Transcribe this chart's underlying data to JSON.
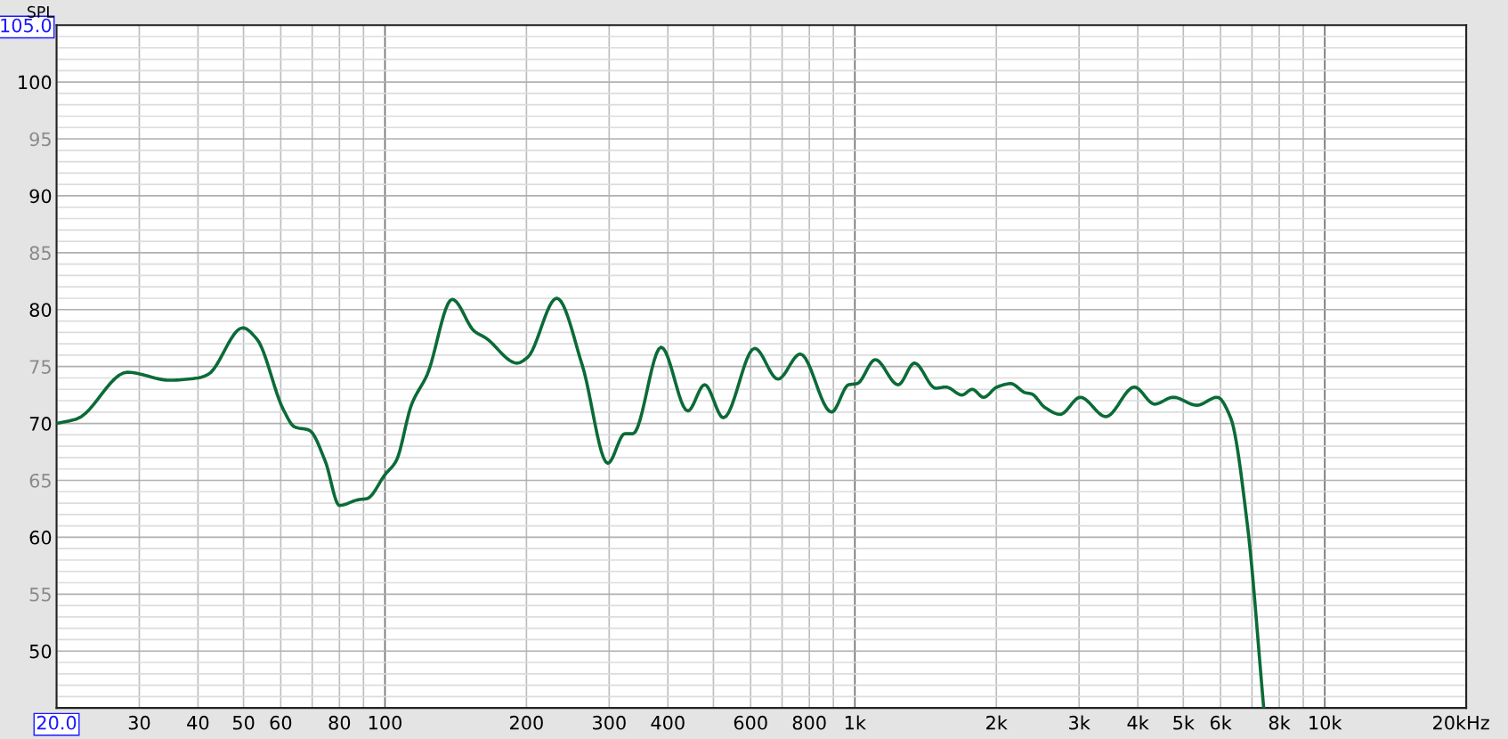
{
  "chart_data": {
    "type": "line",
    "ylabel": "SPL",
    "log": "x",
    "grid": true,
    "marker": "none",
    "line_style": "solid",
    "xlim": [
      20,
      20000
    ],
    "ylim": [
      45,
      105
    ],
    "xticks": [
      {
        "value": 20,
        "label": "20.0"
      },
      30,
      40,
      50,
      60,
      {
        "value": 70,
        "label": null
      },
      80,
      {
        "value": 90,
        "label": null
      },
      100,
      200,
      300,
      400,
      {
        "value": 500,
        "label": null
      },
      600,
      {
        "value": 700,
        "label": null
      },
      800,
      {
        "value": 900,
        "label": null
      },
      {
        "value": 1000,
        "label": "1k"
      },
      {
        "value": 2000,
        "label": "2k"
      },
      {
        "value": 3000,
        "label": "3k"
      },
      {
        "value": 4000,
        "label": "4k"
      },
      {
        "value": 5000,
        "label": "5k"
      },
      {
        "value": 6000,
        "label": "6k"
      },
      {
        "value": 7000,
        "label": null
      },
      {
        "value": 8000,
        "label": "8k"
      },
      {
        "value": 9000,
        "label": null
      },
      {
        "value": 10000,
        "label": "10k"
      },
      {
        "value": 20000,
        "label": "20k"
      }
    ],
    "xlabel": "Hz",
    "yticks": [
      {
        "value": 45,
        "label": null
      },
      {
        "value": 46,
        "label": null
      },
      {
        "value": 47,
        "label": null
      },
      {
        "value": 48,
        "label": null
      },
      {
        "value": 49,
        "label": null
      },
      50,
      {
        "value": 51,
        "label": null
      },
      {
        "value": 52,
        "label": null
      },
      {
        "value": 53,
        "label": null
      },
      {
        "value": 54,
        "label": null
      },
      55,
      {
        "value": 56,
        "label": null
      },
      {
        "value": 57,
        "label": null
      },
      {
        "value": 58,
        "label": null
      },
      {
        "value": 59,
        "label": null
      },
      60,
      {
        "value": 61,
        "label": null
      },
      {
        "value": 62,
        "label": null
      },
      {
        "value": 63,
        "label": null
      },
      {
        "value": 64,
        "label": null
      },
      65,
      {
        "value": 66,
        "label": null
      },
      {
        "value": 67,
        "label": null
      },
      {
        "value": 68,
        "label": null
      },
      {
        "value": 69,
        "label": null
      },
      70,
      {
        "value": 71,
        "label": null
      },
      {
        "value": 72,
        "label": null
      },
      {
        "value": 73,
        "label": null
      },
      {
        "value": 74,
        "label": null
      },
      75,
      {
        "value": 76,
        "label": null
      },
      {
        "value": 77,
        "label": null
      },
      {
        "value": 78,
        "label": null
      },
      {
        "value": 79,
        "label": null
      },
      80,
      {
        "value": 81,
        "label": null
      },
      {
        "value": 82,
        "label": null
      },
      {
        "value": 83,
        "label": null
      },
      {
        "value": 84,
        "label": null
      },
      85,
      {
        "value": 86,
        "label": null
      },
      {
        "value": 87,
        "label": null
      },
      {
        "value": 88,
        "label": null
      },
      {
        "value": 89,
        "label": null
      },
      90,
      {
        "value": 91,
        "label": null
      },
      {
        "value": 92,
        "label": null
      },
      {
        "value": 93,
        "label": null
      },
      {
        "value": 94,
        "label": null
      },
      95,
      {
        "value": 96,
        "label": null
      },
      {
        "value": 97,
        "label": null
      },
      {
        "value": 98,
        "label": null
      },
      {
        "value": 99,
        "label": null
      },
      100,
      {
        "value": 101,
        "label": null
      },
      {
        "value": 102,
        "label": null
      },
      {
        "value": 103,
        "label": null
      },
      {
        "value": 104,
        "label": null
      },
      {
        "value": 105,
        "label": "105.0"
      }
    ],
    "series": [
      {
        "color": "#0b6b37",
        "x": [
          20,
          22.1,
          28.3,
          34.8,
          40,
          42,
          49.8,
          53.4,
          60.8,
          64.2,
          69,
          74.6,
          80,
          87.8,
          91.6,
          100,
          105.6,
          114,
          123,
          139,
          155,
          164,
          191,
          201,
          232,
          263,
          298,
          324,
          337,
          387,
          441,
          479,
          525,
          612,
          686,
          765,
          892,
          970,
          1011,
          1105,
          1236,
          1339,
          1486,
          1562,
          1690,
          1777,
          1878,
          2007,
          2146,
          2306,
          2376,
          2538,
          2734,
          3018,
          3420,
          3934,
          4344,
          4759,
          5345,
          5902,
          6304,
          6848,
          7414
        ],
        "values": [
          70.0,
          70.4,
          74.5,
          73.8,
          74.0,
          74.3,
          78.4,
          77.4,
          71.2,
          69.7,
          69.4,
          66.7,
          62.8,
          63.3,
          63.4,
          65.5,
          66.7,
          71.7,
          74.3,
          80.9,
          78.1,
          77.5,
          75.3,
          75.8,
          81.0,
          75.1,
          66.5,
          69.1,
          69.1,
          76.7,
          71.1,
          73.4,
          70.5,
          76.6,
          73.9,
          76.1,
          71.0,
          73.4,
          73.5,
          75.6,
          73.4,
          75.3,
          73.1,
          73.2,
          72.5,
          73.0,
          72.3,
          73.2,
          73.5,
          72.7,
          72.6,
          71.4,
          70.8,
          72.3,
          70.6,
          73.2,
          71.7,
          72.3,
          71.6,
          72.3,
          70.5,
          61.0,
          45.0
        ]
      }
    ]
  }
}
